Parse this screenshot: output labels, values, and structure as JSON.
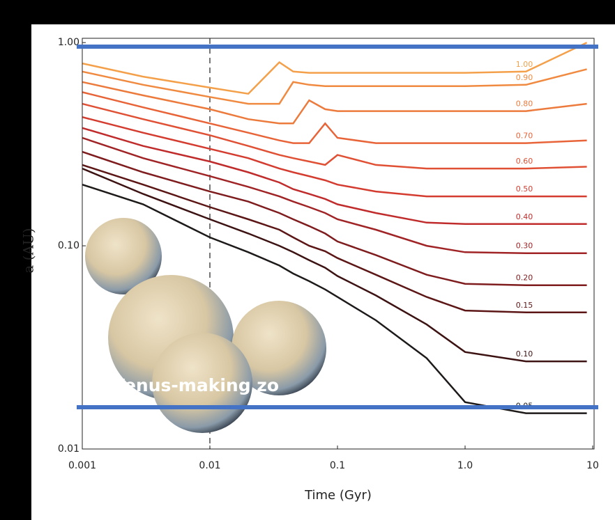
{
  "chart_data": {
    "type": "line",
    "xlabel": "Time (Gyr)",
    "ylabel": "a (AU)",
    "annotation": "Venus-making zo",
    "log_x": true,
    "log_y": true,
    "xlim": [
      0.001,
      10
    ],
    "ylim": [
      0.01,
      1.05
    ],
    "xticks": [
      0.001,
      0.01,
      0.1,
      {
        "value": 1,
        "label": "1.0"
      },
      10
    ],
    "yticks": [
      0.01,
      {
        "value": 0.1,
        "label": "0.10"
      },
      {
        "value": 1,
        "label": "1.00"
      }
    ],
    "vline_x": 0.01,
    "x": [
      0.001,
      0.003,
      0.01,
      0.02,
      0.035,
      0.045,
      0.06,
      0.08,
      0.1,
      0.2,
      0.5,
      1,
      3,
      9
    ],
    "series": [
      {
        "name": "1.00",
        "color": "#f4a04a",
        "values": [
          0.79,
          0.68,
          0.6,
          0.56,
          0.8,
          0.72,
          0.71,
          0.71,
          0.71,
          0.71,
          0.71,
          0.71,
          0.72,
          1.0
        ]
      },
      {
        "name": "0.90",
        "color": "#f08a40",
        "values": [
          0.72,
          0.62,
          0.54,
          0.5,
          0.5,
          0.64,
          0.62,
          0.61,
          0.61,
          0.61,
          0.61,
          0.61,
          0.62,
          0.74
        ]
      },
      {
        "name": "0.80",
        "color": "#ec7a3c",
        "values": [
          0.64,
          0.55,
          0.47,
          0.42,
          0.4,
          0.4,
          0.52,
          0.47,
          0.46,
          0.46,
          0.46,
          0.46,
          0.46,
          0.5
        ]
      },
      {
        "name": "0.70",
        "color": "#e86438",
        "values": [
          0.57,
          0.48,
          0.4,
          0.36,
          0.33,
          0.32,
          0.32,
          0.4,
          0.34,
          0.32,
          0.32,
          0.32,
          0.32,
          0.33
        ]
      },
      {
        "name": "0.60",
        "color": "#e05034",
        "values": [
          0.5,
          0.42,
          0.35,
          0.31,
          0.28,
          0.27,
          0.26,
          0.25,
          0.28,
          0.25,
          0.24,
          0.24,
          0.24,
          0.245
        ]
      },
      {
        "name": "0.50",
        "color": "#d43c30",
        "values": [
          0.43,
          0.36,
          0.3,
          0.27,
          0.24,
          0.23,
          0.22,
          0.21,
          0.2,
          0.185,
          0.175,
          0.175,
          0.175,
          0.175
        ]
      },
      {
        "name": "0.40",
        "color": "#c02c2c",
        "values": [
          0.38,
          0.31,
          0.26,
          0.23,
          0.205,
          0.19,
          0.18,
          0.17,
          0.16,
          0.145,
          0.13,
          0.128,
          0.128,
          0.128
        ]
      },
      {
        "name": "0.30",
        "color": "#a02426",
        "values": [
          0.34,
          0.27,
          0.22,
          0.195,
          0.175,
          0.165,
          0.155,
          0.145,
          0.135,
          0.12,
          0.1,
          0.093,
          0.092,
          0.092
        ]
      },
      {
        "name": "0.20",
        "color": "#7e1c1e",
        "values": [
          0.29,
          0.23,
          0.185,
          0.165,
          0.145,
          0.135,
          0.125,
          0.115,
          0.105,
          0.09,
          0.072,
          0.065,
          0.064,
          0.064
        ]
      },
      {
        "name": "0.15",
        "color": "#5c1616",
        "values": [
          0.25,
          0.2,
          0.155,
          0.135,
          0.12,
          0.11,
          0.1,
          0.094,
          0.087,
          0.072,
          0.056,
          0.048,
          0.047,
          0.047
        ]
      },
      {
        "name": "0.10",
        "color": "#3c1212",
        "values": [
          0.24,
          0.18,
          0.135,
          0.115,
          0.1,
          0.093,
          0.085,
          0.078,
          0.071,
          0.057,
          0.041,
          0.03,
          0.027,
          0.027
        ]
      },
      {
        "name": "0.05",
        "color": "#1e1a1a",
        "values": [
          0.2,
          0.16,
          0.11,
          0.093,
          0.08,
          0.073,
          0.067,
          0.061,
          0.056,
          0.043,
          0.028,
          0.017,
          0.015,
          0.015
        ]
      }
    ]
  }
}
